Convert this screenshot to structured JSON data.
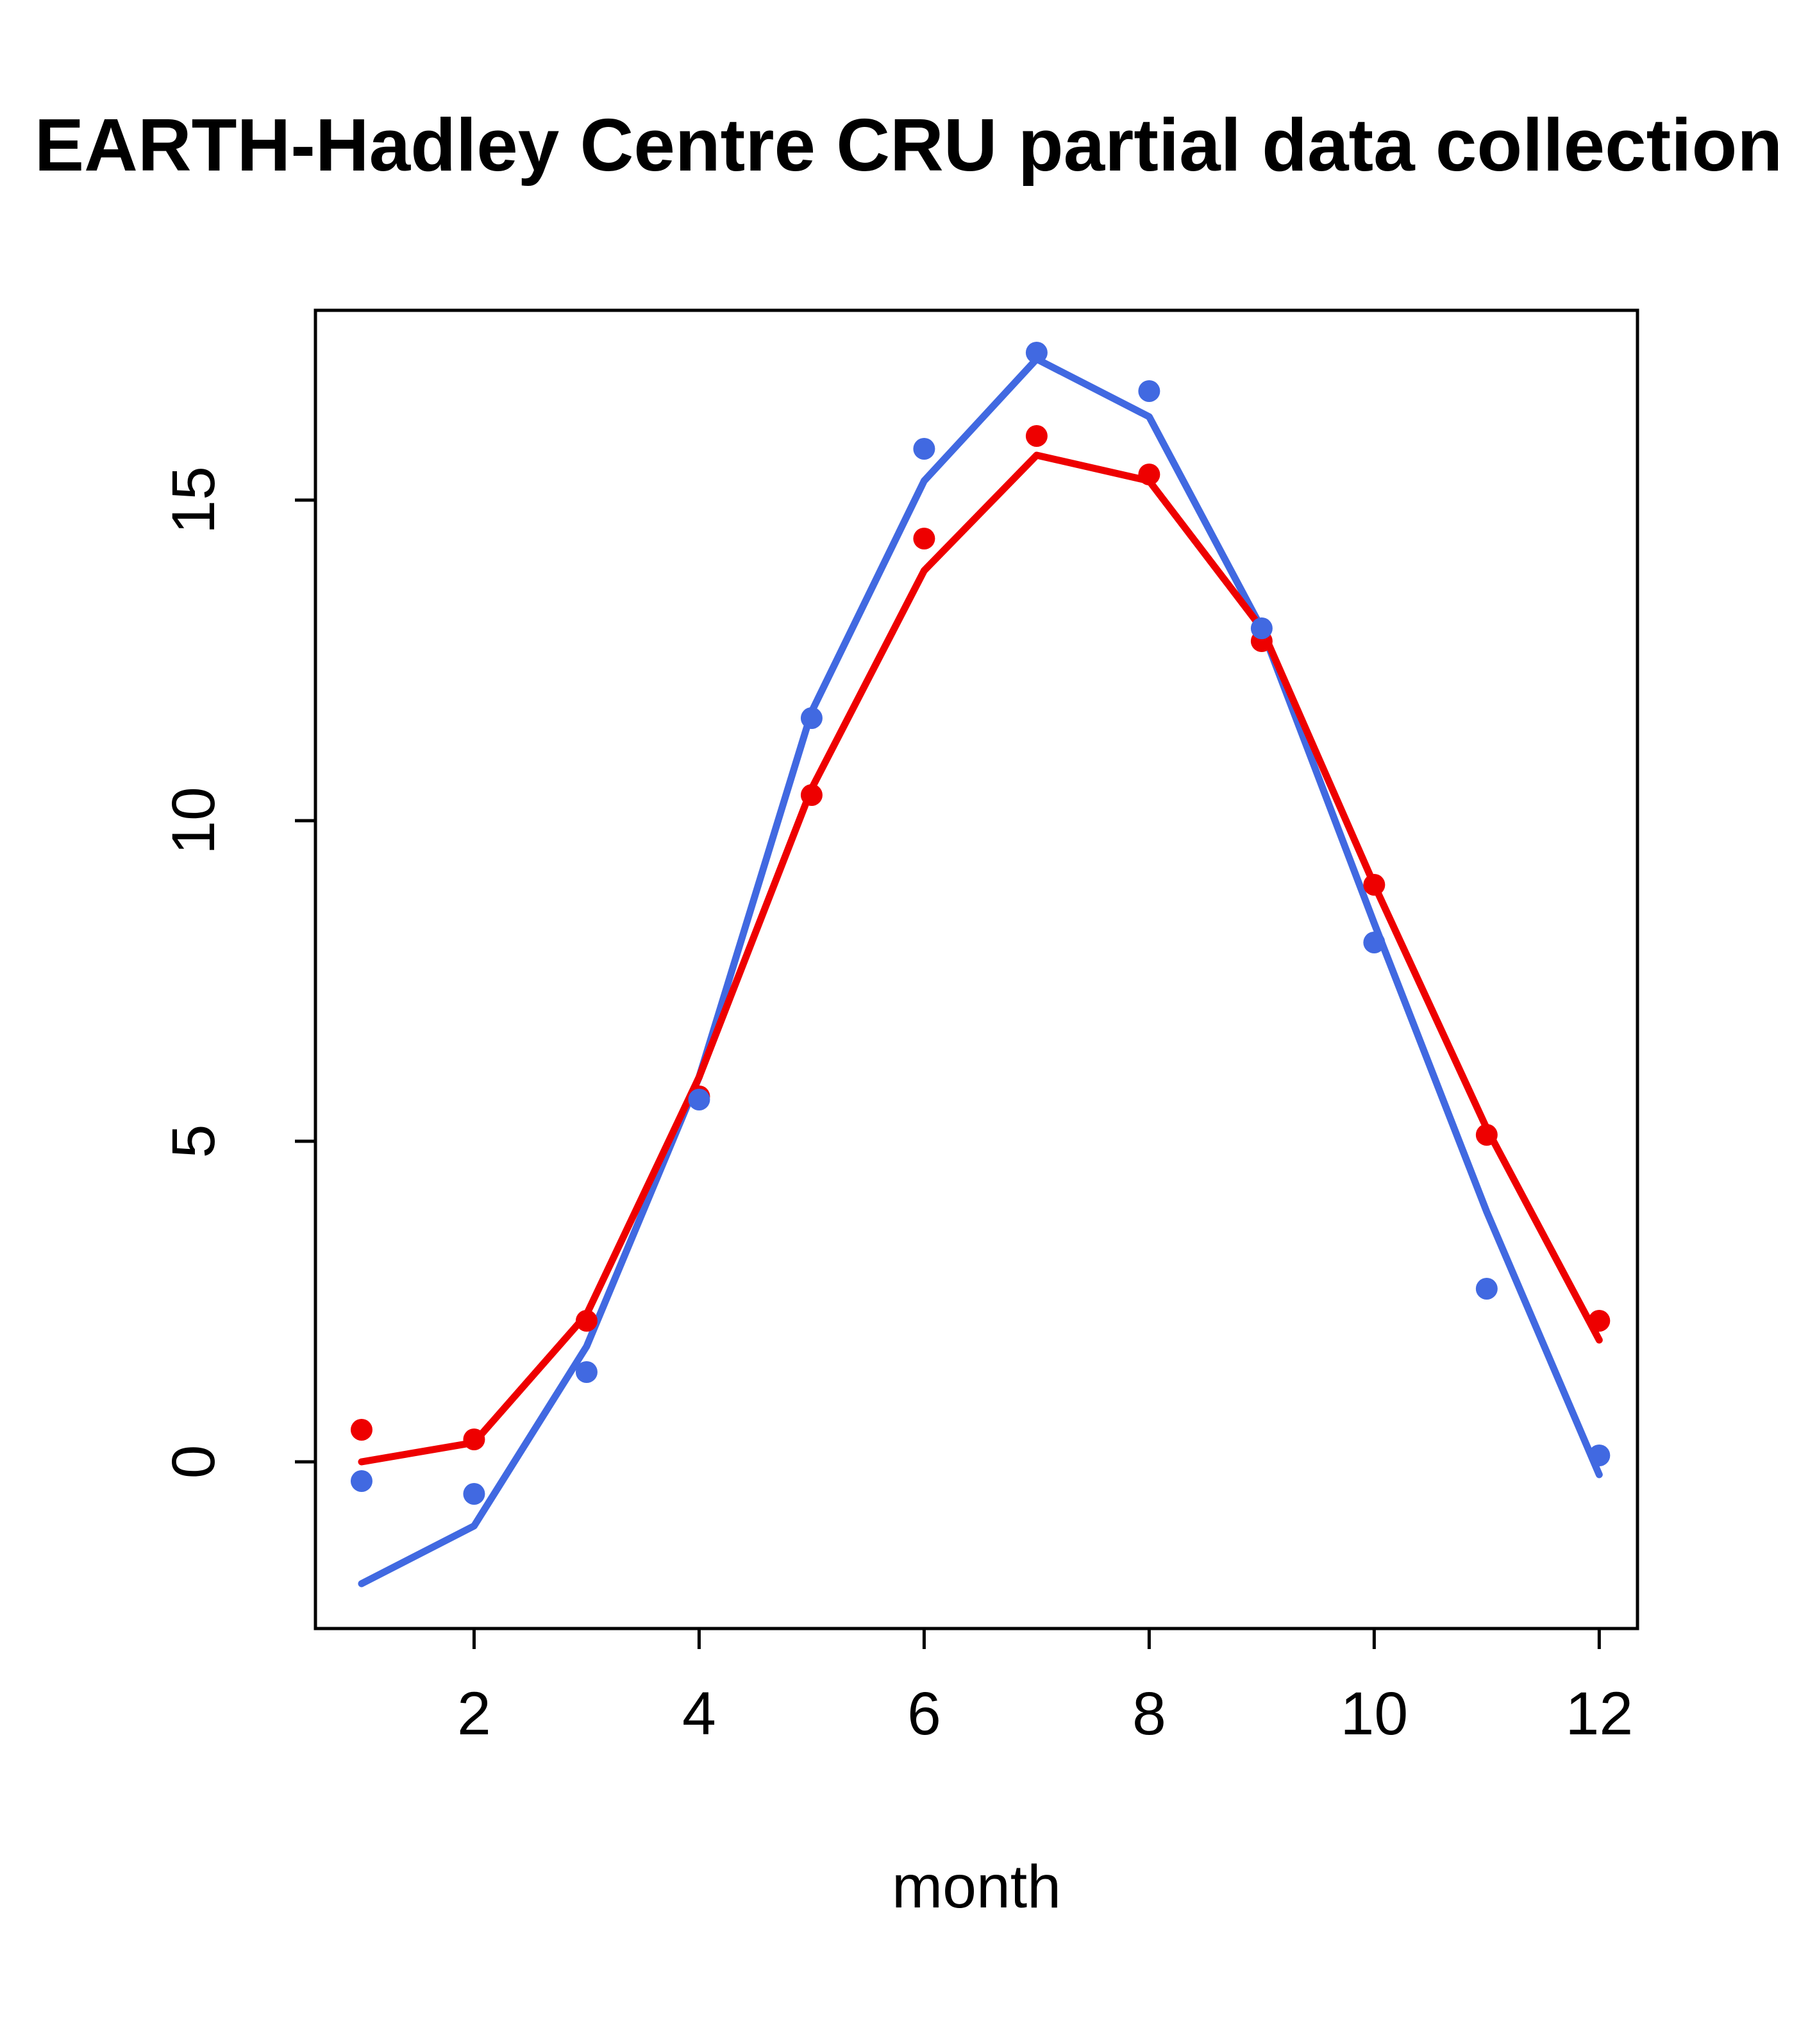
{
  "chart_data": {
    "type": "line",
    "title": "EARTH-Hadley Centre  CRU partial data collection",
    "xlabel": "month",
    "ylabel": "",
    "x": [
      1,
      2,
      3,
      4,
      5,
      6,
      7,
      8,
      9,
      10,
      11,
      12
    ],
    "xlim": [
      0.59,
      12.34
    ],
    "ylim": [
      -2.6,
      17.96
    ],
    "xticks": [
      2,
      4,
      6,
      8,
      10,
      12
    ],
    "yticks": [
      0,
      5,
      10,
      15
    ],
    "grid": false,
    "legend": "none",
    "colors": {
      "blue": "#4169E1",
      "red": "#EE0000",
      "axis": "#000000",
      "background": "#FFFFFF"
    },
    "series": [
      {
        "name": "blue-line",
        "type": "line",
        "color": "#4169E1",
        "values": [
          -1.9,
          -1.0,
          1.8,
          6.0,
          11.7,
          15.3,
          17.2,
          16.3,
          13.0,
          8.4,
          3.9,
          -0.2
        ]
      },
      {
        "name": "red-line",
        "type": "line",
        "color": "#EE0000",
        "values": [
          0.0,
          0.3,
          2.3,
          6.0,
          10.5,
          13.9,
          15.7,
          15.3,
          13.0,
          9.0,
          5.2,
          1.9
        ]
      },
      {
        "name": "red-points",
        "type": "points",
        "color": "#EE0000",
        "values": [
          0.5,
          0.35,
          2.2,
          5.7,
          10.4,
          14.4,
          16.0,
          15.4,
          12.8,
          9.0,
          5.1,
          2.2
        ]
      },
      {
        "name": "blue-points",
        "type": "points",
        "color": "#4169E1",
        "values": [
          -0.3,
          -0.5,
          1.4,
          5.65,
          11.6,
          15.8,
          17.3,
          16.7,
          13.0,
          8.1,
          2.7,
          0.1
        ]
      }
    ]
  }
}
